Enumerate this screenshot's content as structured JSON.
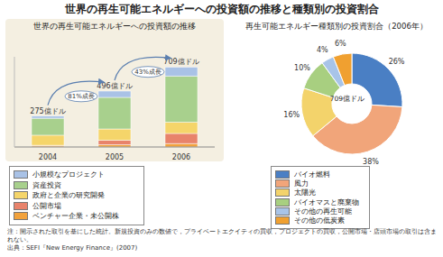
{
  "title": "世界の再生可能エネルギーへの投資額の推移と種類別の投資割合",
  "note": "注：開示された取引を基にした統計。新規投資のみの数値で，プライベートエクイティの買収，プロジェクトの買収，公開市場・店頭市場の取引は含まれない。",
  "source": "出典：SEFI『New Energy Finance』(2007)",
  "chart_data": [
    {
      "type": "bar",
      "title": "世界の再生可能エネルギーへの投資額の推移",
      "categories": [
        "2004",
        "2005",
        "2006"
      ],
      "stacked": true,
      "legend": "bottom",
      "tick_labels": "x",
      "ylim": [
        0,
        800
      ],
      "series": [
        {
          "name": "ベンチャー企業・未公開株",
          "color": "#f2a23c",
          "values": [
            10,
            20,
            30
          ]
        },
        {
          "name": "公開市場",
          "color": "#e8836b",
          "values": [
            5,
            40,
            90
          ]
        },
        {
          "name": "政府と企業の研究開発",
          "color": "#f5d56a",
          "values": [
            90,
            100,
            100
          ]
        },
        {
          "name": "資産投資",
          "color": "#a8d08d",
          "values": [
            150,
            280,
            409
          ]
        },
        {
          "name": "小規模なプロジェクト",
          "color": "#a9c2e6",
          "values": [
            20,
            56,
            80
          ]
        }
      ],
      "total_labels": [
        "275億ドル",
        "496億ドル",
        "709億ドル"
      ],
      "annotations": [
        {
          "text": "81%成長",
          "between": [
            "2004",
            "2005"
          ]
        },
        {
          "text": "43%成長",
          "between": [
            "2005",
            "2006"
          ]
        }
      ]
    },
    {
      "type": "pie",
      "title": "再生可能エネルギー種類別の投資割合（2006年）",
      "center_label": "709億ドル",
      "legend": "bottom",
      "categories": [
        "バイオ燃料",
        "風力",
        "太陽光",
        "バイオマスと廃棄物",
        "その他の再生可能",
        "その他の低炭素"
      ],
      "values": [
        26,
        38,
        16,
        10,
        4,
        6
      ],
      "value_labels": [
        "26%",
        "38%",
        "16%",
        "10%",
        "4%",
        "6%"
      ],
      "colors": [
        "#4a7fc4",
        "#f1a57a",
        "#f3d36b",
        "#a8cf80",
        "#a8c4e8",
        "#f0a030"
      ],
      "data_labels": true
    }
  ]
}
